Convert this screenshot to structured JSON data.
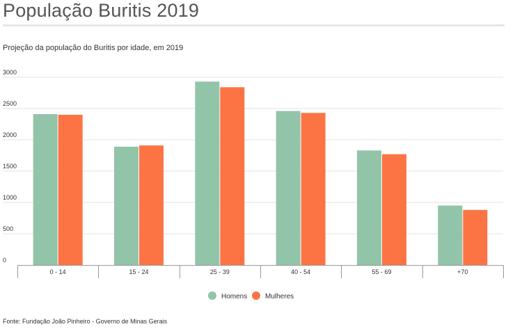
{
  "title": "População Buritis 2019",
  "subtitle": "Projeção da população do Buritis por idade, em 2019",
  "source": "Fonte: Fundação João Pinheiro - Governo de Minas Gerais",
  "colors": {
    "homens": "#92c4a9",
    "mulheres": "#fd7444",
    "grid": "#e3e3e3",
    "axis": "#999999"
  },
  "chart_data": {
    "type": "bar",
    "categories": [
      "0 - 14",
      "15 - 24",
      "25 - 39",
      "40 - 54",
      "55 - 69",
      "+70"
    ],
    "series": [
      {
        "name": "Homens",
        "values": [
          2410,
          1890,
          2930,
          2460,
          1830,
          950
        ]
      },
      {
        "name": "Mulheres",
        "values": [
          2400,
          1910,
          2840,
          2430,
          1770,
          880
        ]
      }
    ],
    "yticks": [
      0,
      500,
      1000,
      1500,
      2000,
      2500,
      3000
    ],
    "ylim": [
      0,
      3000
    ],
    "grid": true,
    "legend": "bottom-center",
    "xlabel": "",
    "ylabel": ""
  }
}
